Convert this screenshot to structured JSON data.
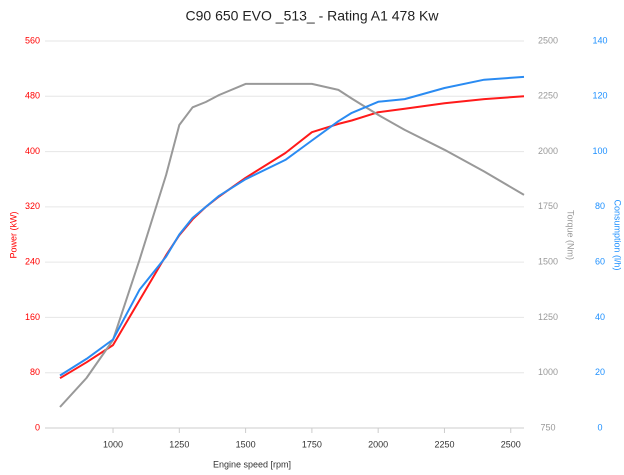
{
  "chart_data": {
    "type": "line",
    "title": "C90 650 EVO _513_ - Rating A1 478 Kw",
    "xlabel": "Engine speed [rpm]",
    "ylabel": "Power (kW)",
    "y2label": "Torque (Nm)",
    "y3label": "Consumption (l/h)",
    "x": [
      800,
      900,
      1000,
      1100,
      1200,
      1250,
      1300,
      1350,
      1400,
      1500,
      1650,
      1750,
      1850,
      1900,
      2000,
      2100,
      2250,
      2400,
      2550
    ],
    "xlim": [
      800,
      2550
    ],
    "xticks": [
      1000,
      1250,
      1500,
      1750,
      2000,
      2250,
      2500
    ],
    "ylim": [
      0,
      560
    ],
    "yticks": [
      0,
      80,
      160,
      240,
      320,
      400,
      480,
      560
    ],
    "ycolor": "#ff0000",
    "y2lim": [
      750,
      2500
    ],
    "y2ticks": [
      750,
      1000,
      1250,
      1500,
      1750,
      2000,
      2250,
      2500
    ],
    "y2color": "#999999",
    "y3lim": [
      0,
      140
    ],
    "y3ticks": [
      0,
      20,
      40,
      60,
      80,
      100,
      120,
      140
    ],
    "y3color": "#1e90ff",
    "grid": true,
    "series": [
      {
        "color": "#ff1a1a",
        "axis": "y",
        "values": [
          72,
          95,
          120,
          185,
          250,
          279,
          302,
          320,
          335,
          362,
          398,
          428,
          440,
          445,
          457,
          462,
          470,
          476,
          480
        ]
      },
      {
        "color": "#999999",
        "axis": "y2",
        "values": [
          845,
          976,
          1148,
          1510,
          1894,
          2120,
          2200,
          2224,
          2256,
          2306,
          2306,
          2306,
          2279,
          2240,
          2166,
          2098,
          2008,
          1910,
          1804
        ]
      },
      {
        "color": "#2a8bf2",
        "axis": "y3",
        "values": [
          19,
          25,
          32,
          50,
          62,
          70,
          76,
          80,
          84,
          90,
          97,
          104,
          111,
          114,
          118,
          119,
          123,
          126,
          127
        ]
      }
    ]
  }
}
